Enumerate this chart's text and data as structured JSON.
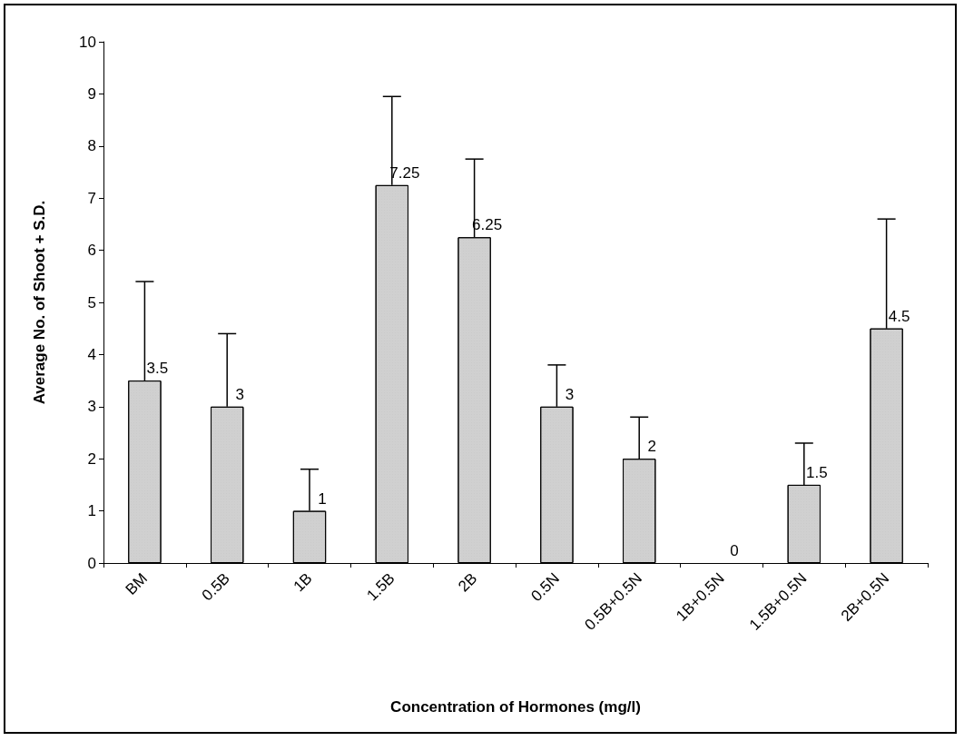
{
  "chart_data": {
    "type": "bar",
    "xlabel": "Concentration of Hormones (mg/l)",
    "ylabel": "Average No. of Shoot + S.D.",
    "categories": [
      "BM",
      "0.5B",
      "1B",
      "1.5B",
      "2B",
      "0.5N",
      "0.5B+0.5N",
      "1B+0.5N",
      "1.5B+0.5N",
      "2B+0.5N"
    ],
    "values": [
      3.5,
      3,
      1,
      7.25,
      6.25,
      3,
      2,
      0,
      1.5,
      4.5
    ],
    "errors": [
      [
        3.5,
        5.4
      ],
      [
        3,
        4.4
      ],
      [
        1,
        1.8
      ],
      [
        7.25,
        8.95
      ],
      [
        6.25,
        7.75
      ],
      [
        3,
        3.8
      ],
      [
        2,
        2.8
      ],
      null,
      [
        1.5,
        2.3
      ],
      [
        4.5,
        6.6
      ]
    ],
    "color": "#d0d0d0",
    "data_labels": true,
    "ylim": [
      0,
      10
    ],
    "yticks": [
      0,
      1,
      2,
      3,
      4,
      5,
      6,
      7,
      8,
      9,
      10
    ],
    "grid": false
  }
}
